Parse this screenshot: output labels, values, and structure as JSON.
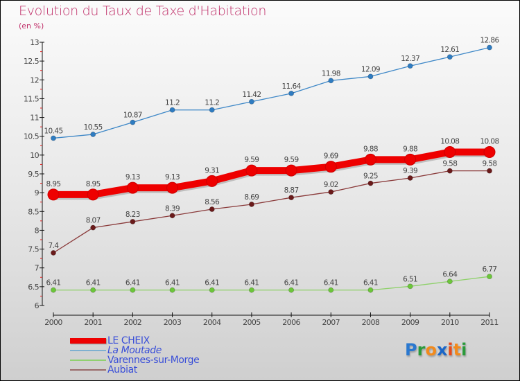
{
  "title": "Evolution du Taux de Taxe d'Habitation",
  "subtitle": "(en %)",
  "logo": {
    "letters": [
      {
        "char": "P",
        "color": "#2a78d0"
      },
      {
        "char": "r",
        "color": "#2a9a3a"
      },
      {
        "char": "o",
        "color": "#f28a1c"
      },
      {
        "char": "x",
        "color": "#1a66c8"
      },
      {
        "char": "i",
        "color": "#e84a1a"
      },
      {
        "char": "t",
        "color": "#f28a1c"
      },
      {
        "char": "i",
        "color": "#2a9a3a"
      }
    ]
  },
  "chart_data": {
    "type": "line",
    "title": "Evolution du Taux de Taxe d'Habitation",
    "subtitle": "(en %)",
    "xlabel": "",
    "ylabel": "",
    "x": [
      "2000",
      "2001",
      "2002",
      "2003",
      "2004",
      "2005",
      "2006",
      "2007",
      "2008",
      "2009",
      "2010",
      "2011"
    ],
    "ylim": [
      6,
      13
    ],
    "yticks": [
      "6",
      "6.5",
      "7",
      "7.5",
      "8",
      "8.5",
      "9",
      "9.5",
      "10",
      "10.5",
      "11",
      "11.5",
      "12",
      "12.5",
      "13"
    ],
    "grid": false,
    "legend_position": "bottom-left",
    "series": [
      {
        "name": "LE CHEIX",
        "color": "#ee0000",
        "emphasis": "thick",
        "values": [
          8.95,
          8.95,
          9.13,
          9.13,
          9.31,
          9.59,
          9.59,
          9.69,
          9.88,
          9.88,
          10.08,
          10.08
        ],
        "labels": [
          "8.95",
          "8.95",
          "9.13",
          "9.13",
          "9.31",
          "9.59",
          "9.59",
          "9.69",
          "9.88",
          "9.88",
          "10.08",
          "10.08"
        ]
      },
      {
        "name": "La Moutade",
        "color": "#3d87c7",
        "marker": "#2f7cc1",
        "values": [
          10.45,
          10.55,
          10.87,
          11.2,
          11.2,
          11.42,
          11.64,
          11.98,
          12.09,
          12.37,
          12.61,
          12.86
        ],
        "labels": [
          "10.45",
          "10.55",
          "10.87",
          "11.2",
          "11.2",
          "11.42",
          "11.64",
          "11.98",
          "12.09",
          "12.37",
          "12.61",
          "12.86"
        ]
      },
      {
        "name": "Varennes-sur-Morge",
        "color": "#8fd16b",
        "marker": "#6cc63a",
        "values": [
          6.41,
          6.41,
          6.41,
          6.41,
          6.41,
          6.41,
          6.41,
          6.41,
          6.41,
          6.51,
          6.64,
          6.77
        ],
        "labels": [
          "6.41",
          "6.41",
          "6.41",
          "6.41",
          "6.41",
          "6.41",
          "6.41",
          "6.41",
          "6.41",
          "6.51",
          "6.64",
          "6.77"
        ]
      },
      {
        "name": "Aubiat",
        "color": "#8a3a3a",
        "marker": "#6a1a1a",
        "values": [
          7.4,
          8.07,
          8.23,
          8.39,
          8.56,
          8.69,
          8.87,
          9.02,
          9.25,
          9.39,
          9.58,
          9.58
        ],
        "labels": [
          "7.4",
          "8.07",
          "8.23",
          "8.39",
          "8.56",
          "8.69",
          "8.87",
          "9.02",
          "9.25",
          "9.39",
          "9.58",
          "9.58"
        ]
      }
    ]
  },
  "legend": {
    "items": [
      {
        "label": "LE CHEIX",
        "color": "#ee0000"
      },
      {
        "label": "La Moutade",
        "color": "#7fb0d0"
      },
      {
        "label": "Varennes-sur-Morge",
        "color": "#90d070"
      },
      {
        "label": "Aubiat",
        "color": "#9a6a6a"
      }
    ]
  }
}
